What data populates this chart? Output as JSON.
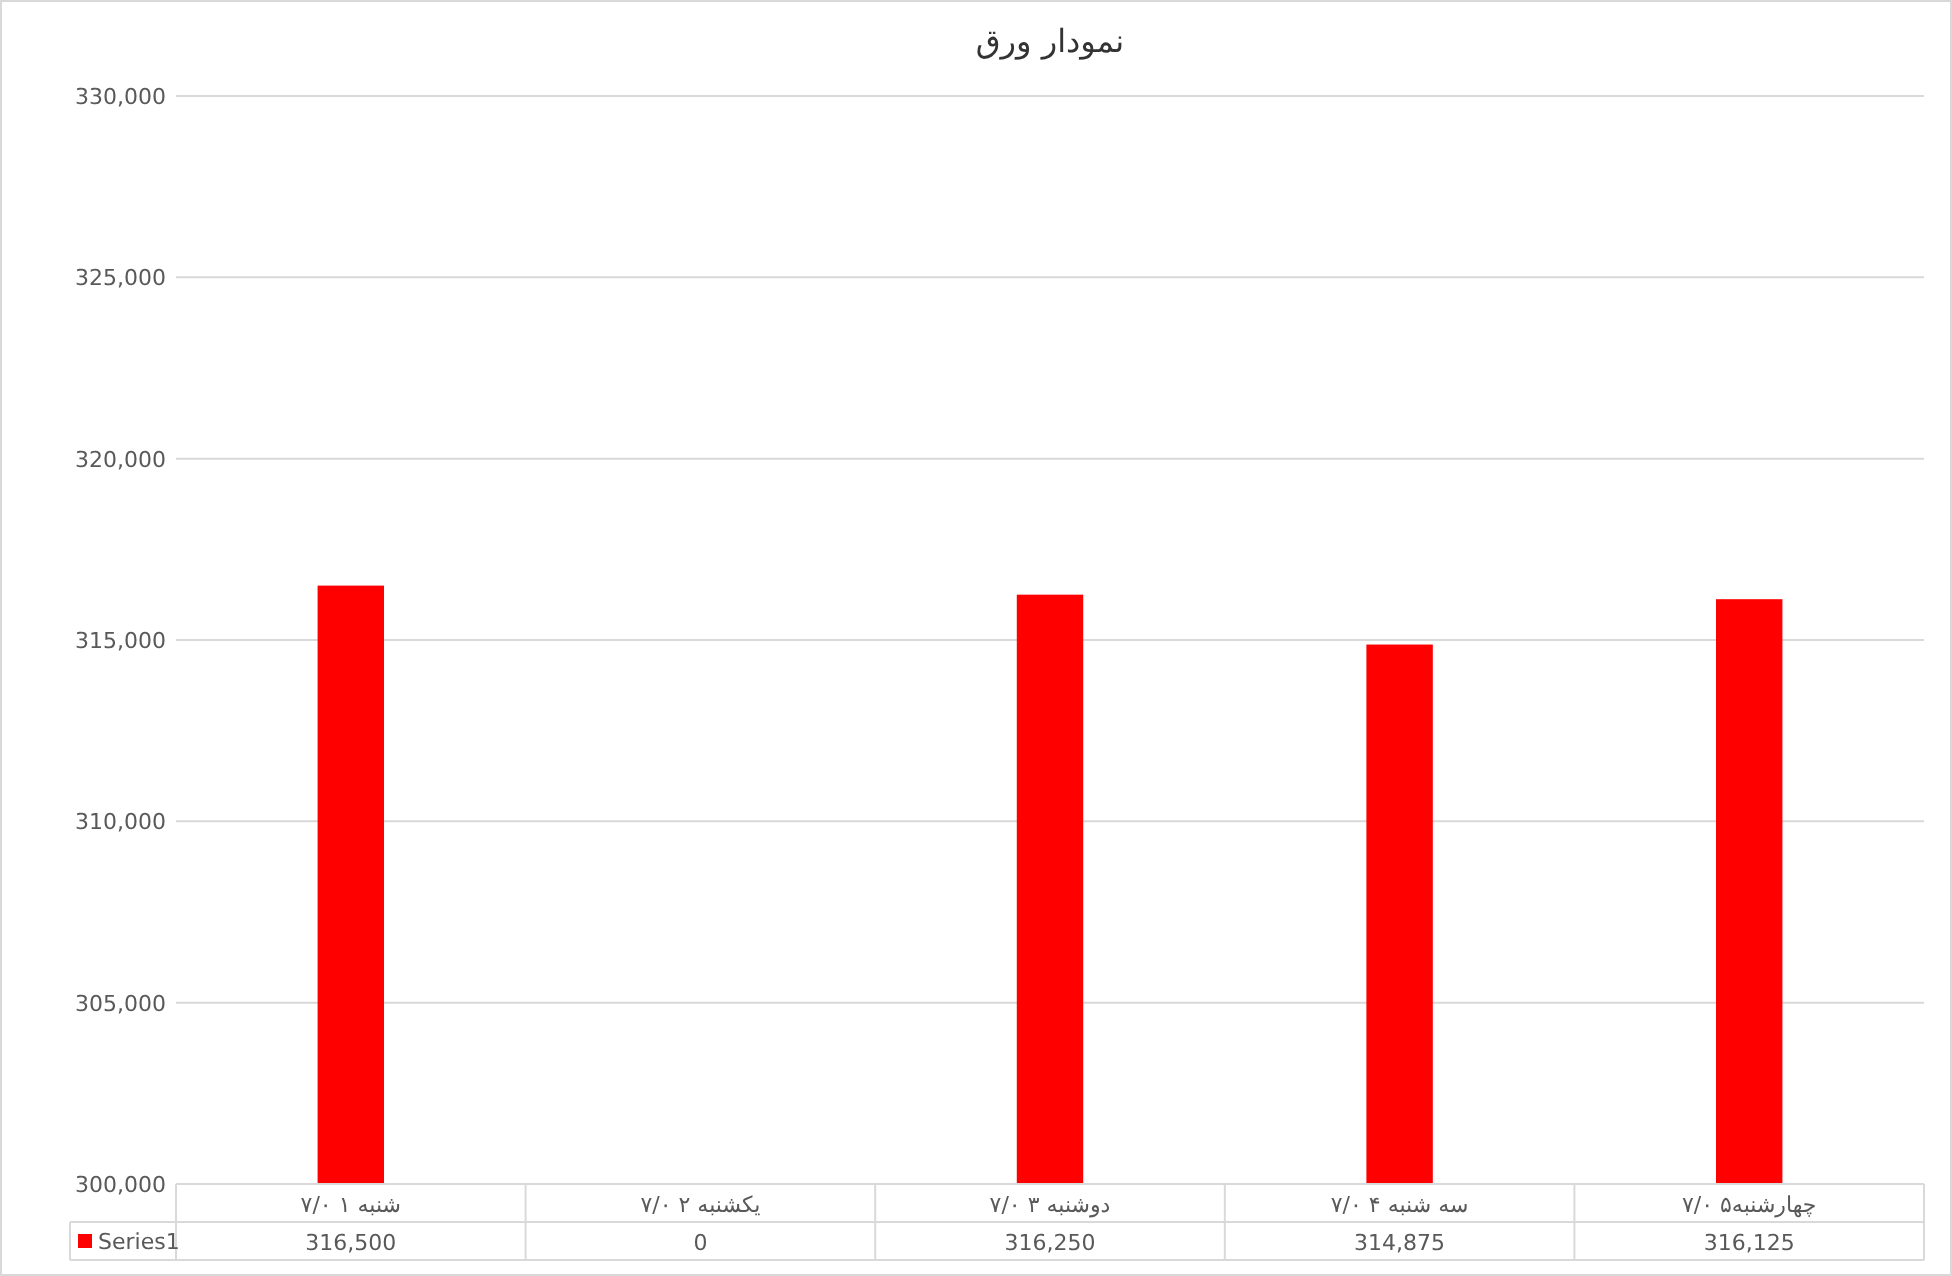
{
  "chart_data": {
    "type": "bar",
    "title": "نمودار ورق",
    "categories": [
      "شنبه ۱ ۷/۰",
      "یکشنبه ۲ ۷/۰",
      "دوشنبه ۳ ۷/۰",
      "سه شنبه ۴ ۷/۰",
      "چهارشنبه۵ ۷/۰"
    ],
    "series": [
      {
        "name": "Series1",
        "color": "#ff0000",
        "values": [
          316500,
          null,
          316250,
          314875,
          316125
        ],
        "value_labels": [
          "316,500",
          "0",
          "316,250",
          "314,875",
          "316,125"
        ]
      }
    ],
    "ylim": [
      300000,
      330000
    ],
    "yticks": [
      {
        "value": 300000,
        "label": "300,000"
      },
      {
        "value": 305000,
        "label": "305,000"
      },
      {
        "value": 310000,
        "label": "310,000"
      },
      {
        "value": 315000,
        "label": "315,000"
      },
      {
        "value": 320000,
        "label": "320,000"
      },
      {
        "value": 325000,
        "label": "325,000"
      },
      {
        "value": 330000,
        "label": "330,000"
      }
    ],
    "grid": "y",
    "legend": "bottom"
  }
}
